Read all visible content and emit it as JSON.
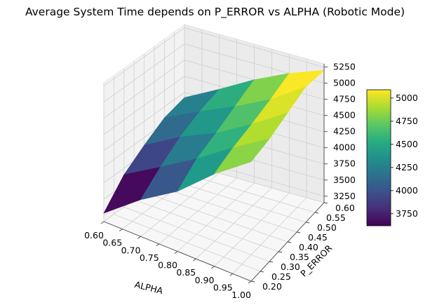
{
  "chart_data": {
    "type": "surface3d",
    "title": "Average System Time depends on P_ERROR vs ALPHA (Robotic Mode)",
    "xlabel": "ALPHA",
    "ylabel": "P_ERROR",
    "zlabel": "",
    "x_ticks": [
      "0.60",
      "0.65",
      "0.70",
      "0.75",
      "0.80",
      "0.85",
      "0.90",
      "0.95",
      "1.00"
    ],
    "y_ticks": [
      "0.20",
      "0.25",
      "0.30",
      "0.35",
      "0.40",
      "0.45",
      "0.50",
      "0.55",
      "0.60"
    ],
    "z_ticks": [
      "3250",
      "3500",
      "3750",
      "4000",
      "4250",
      "4500",
      "4750",
      "5000",
      "5250"
    ],
    "xlim": [
      0.6,
      1.0
    ],
    "ylim": [
      0.2,
      0.6
    ],
    "zlim": [
      3150,
      5300
    ],
    "x": [
      0.6,
      0.7,
      0.8,
      0.9,
      1.0
    ],
    "y": [
      0.2,
      0.3,
      0.4,
      0.5,
      0.6
    ],
    "z": [
      [
        3280,
        3720,
        4080,
        4580,
        5000
      ],
      [
        3650,
        3980,
        4320,
        4700,
        5050
      ],
      [
        3880,
        4200,
        4450,
        4780,
        5150
      ],
      [
        4080,
        4350,
        4600,
        4880,
        5250
      ],
      [
        4170,
        4450,
        4750,
        5000,
        5200
      ]
    ],
    "colormap": "viridis",
    "colorbar": {
      "ticks": [
        "3750",
        "4000",
        "4250",
        "4500",
        "4750",
        "5000"
      ],
      "range": [
        3620,
        5090
      ]
    }
  }
}
